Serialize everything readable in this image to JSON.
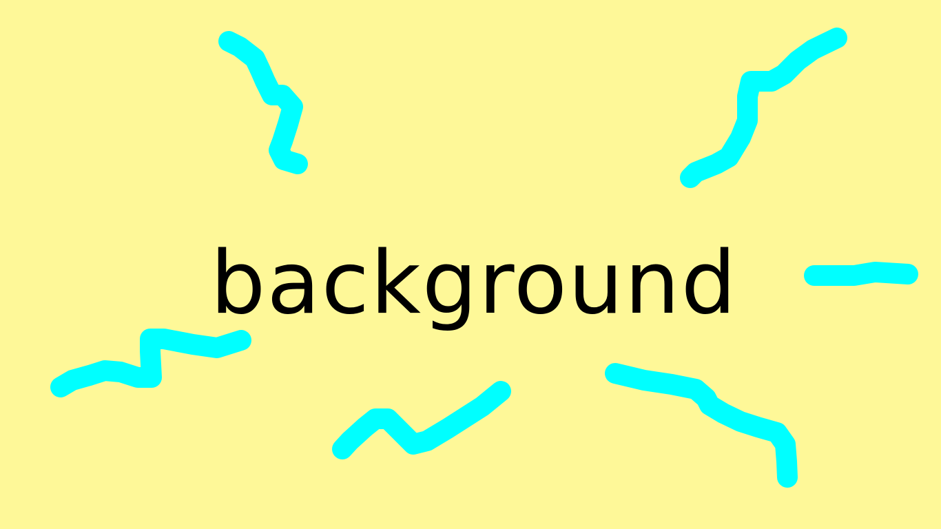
{
  "background_color": "#fef898",
  "stroke_color": "#00ffff",
  "text_color": "#000000",
  "word": "background"
}
